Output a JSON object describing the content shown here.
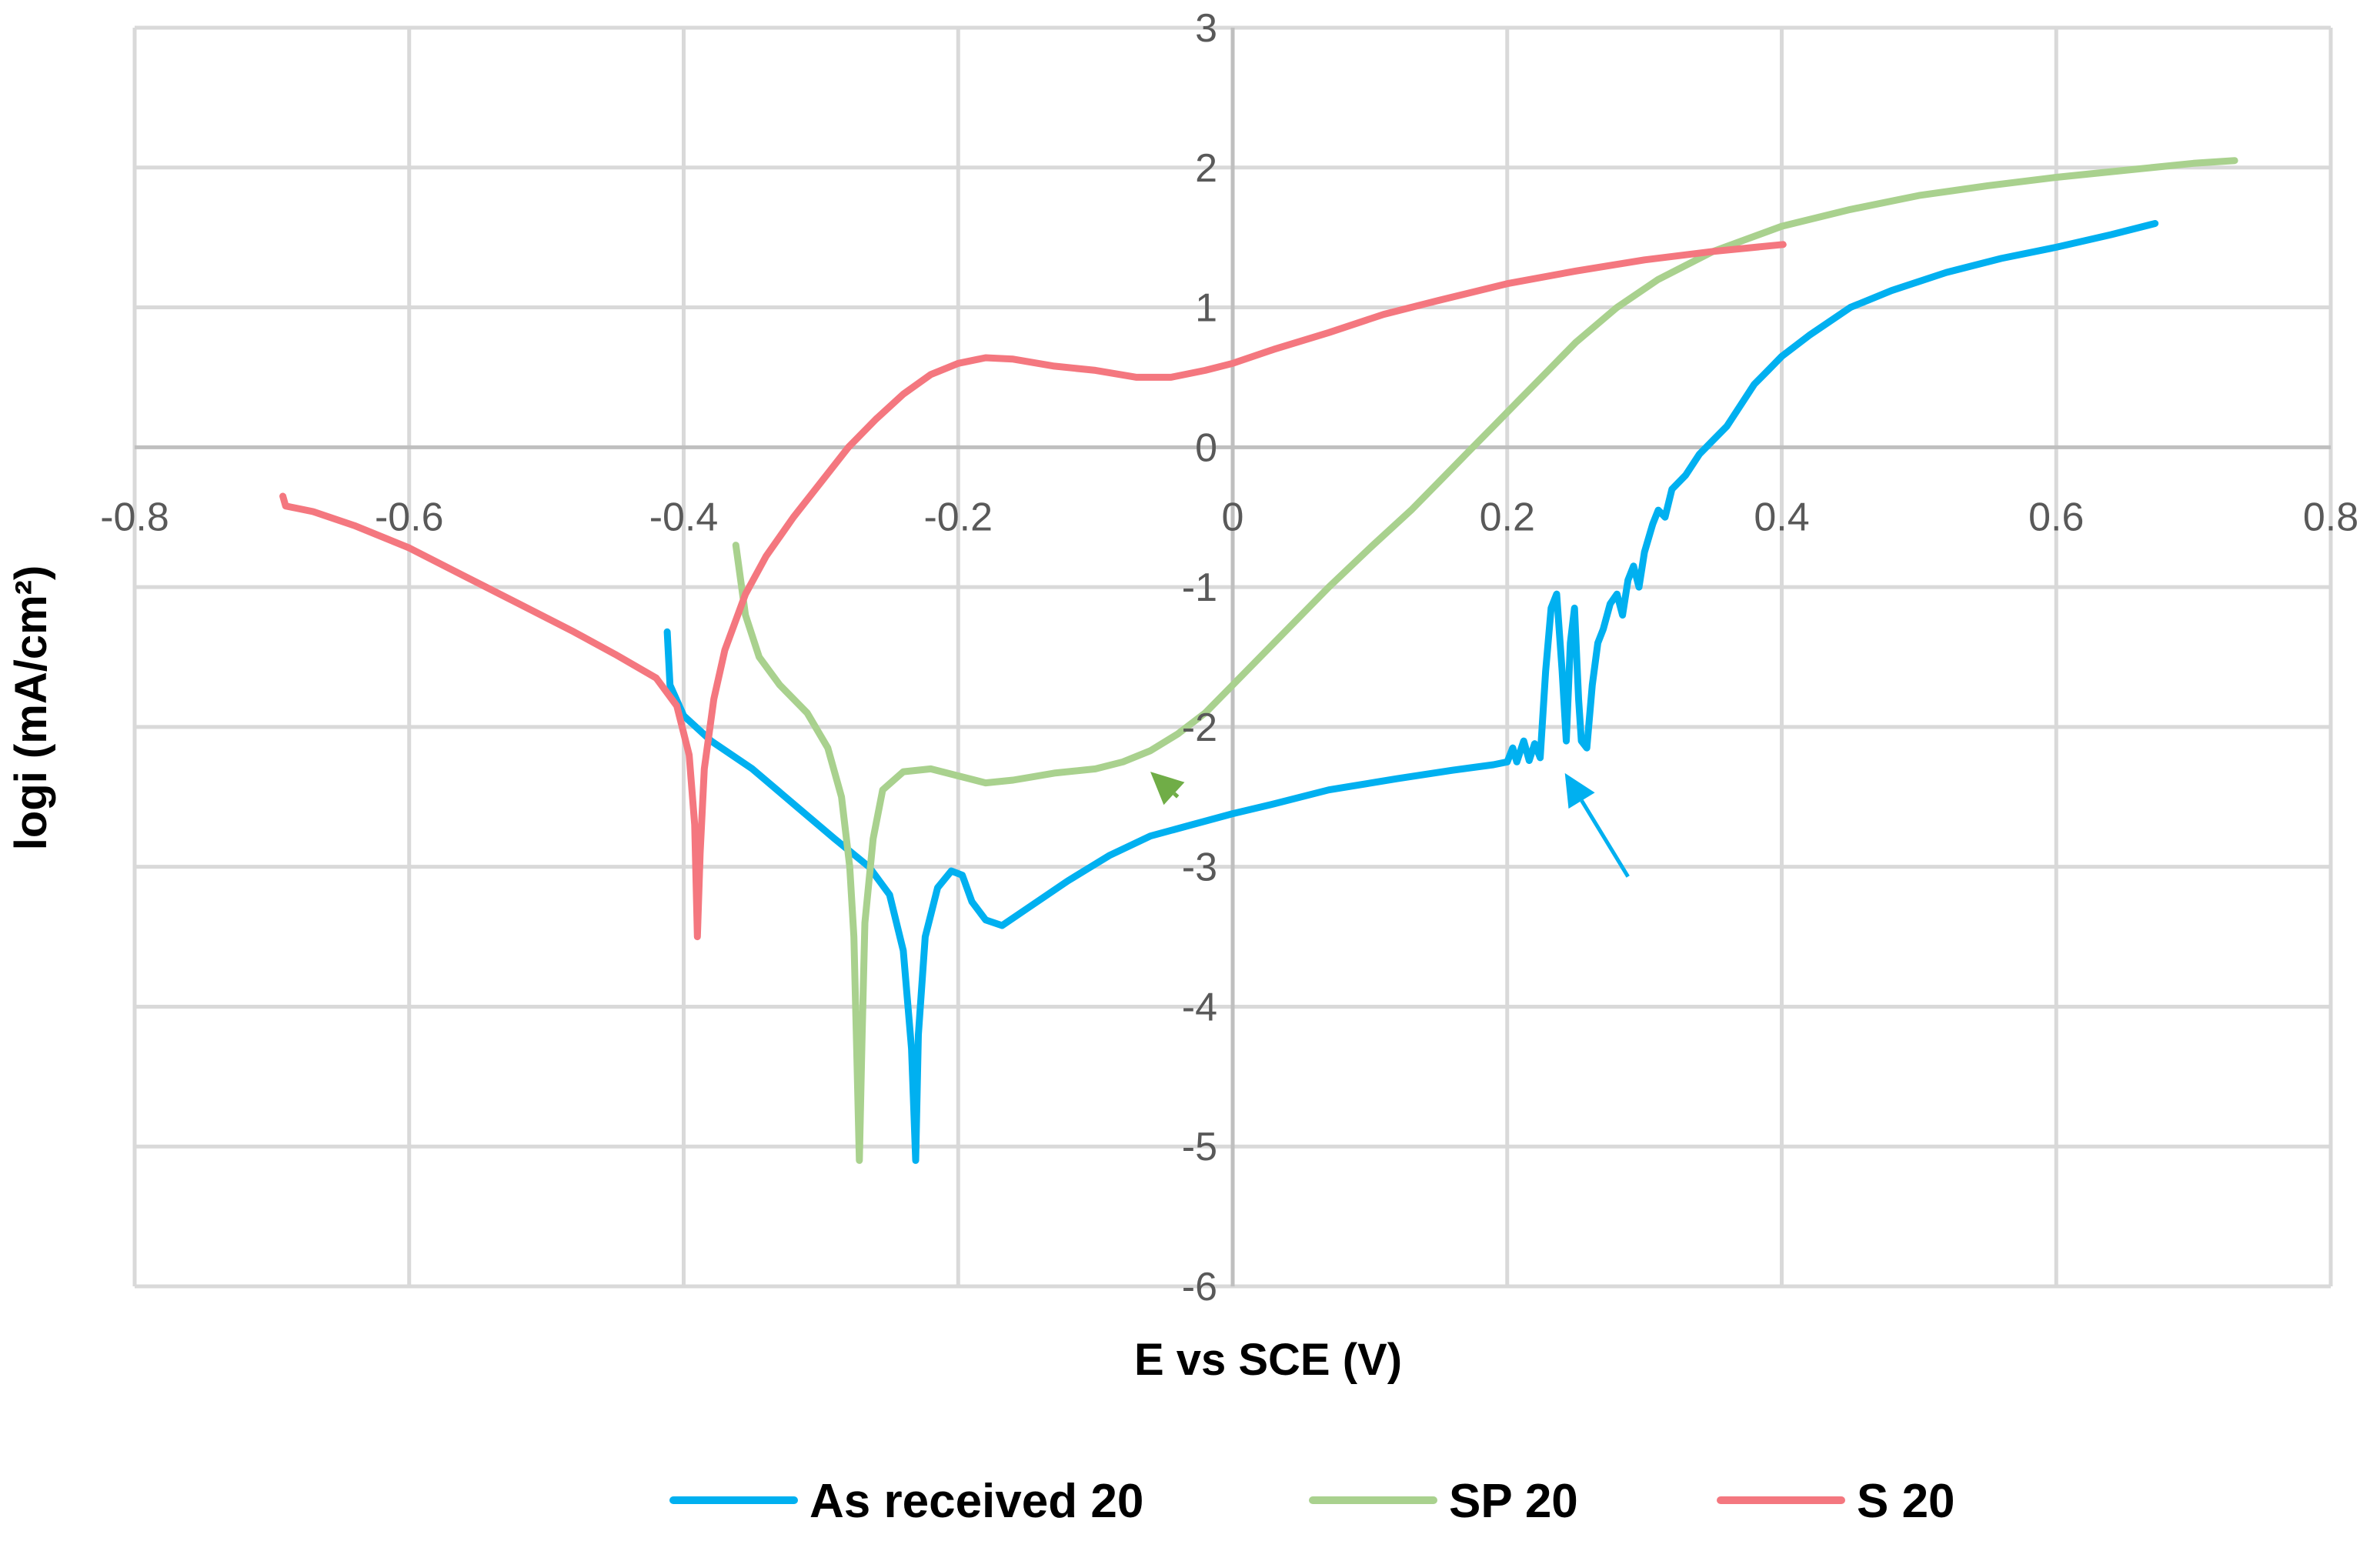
{
  "chart_data": {
    "type": "line",
    "title": "",
    "xlabel": "E vs SCE (V)",
    "ylabel": "logi (mA/cm²)",
    "xlim": [
      -0.8,
      0.8
    ],
    "ylim": [
      -6,
      3
    ],
    "xticks": [
      -0.8,
      -0.6,
      -0.4,
      -0.2,
      0,
      0.2,
      0.4,
      0.6,
      0.8
    ],
    "yticks": [
      -6,
      -5,
      -4,
      -3,
      -2,
      -1,
      0,
      1,
      2,
      3
    ],
    "xtick_labels": [
      "-0.8",
      "-0.6",
      "-0.4",
      "-0.2",
      "0",
      "0.2",
      "0.4",
      "0.6",
      "0.8"
    ],
    "ytick_labels": [
      "-6",
      "-5",
      "-4",
      "-3",
      "-2",
      "-1",
      "0",
      "1",
      "2",
      "3"
    ],
    "grid": true,
    "legend_position": "bottom",
    "series": [
      {
        "name": "As received 20",
        "color": "#00b0f0",
        "points": [
          [
            -0.412,
            -1.32
          ],
          [
            -0.41,
            -1.7
          ],
          [
            -0.4,
            -1.92
          ],
          [
            -0.38,
            -2.1
          ],
          [
            -0.35,
            -2.3
          ],
          [
            -0.32,
            -2.55
          ],
          [
            -0.29,
            -2.8
          ],
          [
            -0.265,
            -3.0
          ],
          [
            -0.25,
            -3.2
          ],
          [
            -0.24,
            -3.6
          ],
          [
            -0.234,
            -4.3
          ],
          [
            -0.231,
            -5.1
          ],
          [
            -0.229,
            -4.2
          ],
          [
            -0.224,
            -3.5
          ],
          [
            -0.215,
            -3.15
          ],
          [
            -0.205,
            -3.03
          ],
          [
            -0.197,
            -3.06
          ],
          [
            -0.19,
            -3.25
          ],
          [
            -0.18,
            -3.38
          ],
          [
            -0.168,
            -3.42
          ],
          [
            -0.15,
            -3.3
          ],
          [
            -0.12,
            -3.1
          ],
          [
            -0.09,
            -2.92
          ],
          [
            -0.06,
            -2.78
          ],
          [
            -0.03,
            -2.7
          ],
          [
            0.0,
            -2.62
          ],
          [
            0.03,
            -2.55
          ],
          [
            0.07,
            -2.45
          ],
          [
            0.12,
            -2.37
          ],
          [
            0.16,
            -2.31
          ],
          [
            0.19,
            -2.27
          ],
          [
            0.2,
            -2.25
          ],
          [
            0.204,
            -2.15
          ],
          [
            0.207,
            -2.25
          ],
          [
            0.212,
            -2.1
          ],
          [
            0.216,
            -2.24
          ],
          [
            0.22,
            -2.12
          ],
          [
            0.224,
            -2.22
          ],
          [
            0.228,
            -1.6
          ],
          [
            0.232,
            -1.15
          ],
          [
            0.236,
            -1.05
          ],
          [
            0.24,
            -1.6
          ],
          [
            0.243,
            -2.1
          ],
          [
            0.246,
            -1.4
          ],
          [
            0.249,
            -1.15
          ],
          [
            0.252,
            -1.8
          ],
          [
            0.254,
            -2.1
          ],
          [
            0.258,
            -2.15
          ],
          [
            0.262,
            -1.7
          ],
          [
            0.266,
            -1.4
          ],
          [
            0.27,
            -1.3
          ],
          [
            0.275,
            -1.12
          ],
          [
            0.28,
            -1.05
          ],
          [
            0.284,
            -1.2
          ],
          [
            0.288,
            -0.95
          ],
          [
            0.292,
            -0.85
          ],
          [
            0.296,
            -1.0
          ],
          [
            0.3,
            -0.75
          ],
          [
            0.306,
            -0.55
          ],
          [
            0.31,
            -0.45
          ],
          [
            0.315,
            -0.5
          ],
          [
            0.32,
            -0.3
          ],
          [
            0.33,
            -0.2
          ],
          [
            0.34,
            -0.05
          ],
          [
            0.35,
            0.05
          ],
          [
            0.36,
            0.15
          ],
          [
            0.37,
            0.3
          ],
          [
            0.38,
            0.45
          ],
          [
            0.39,
            0.55
          ],
          [
            0.4,
            0.65
          ],
          [
            0.42,
            0.8
          ],
          [
            0.45,
            1.0
          ],
          [
            0.48,
            1.12
          ],
          [
            0.52,
            1.25
          ],
          [
            0.56,
            1.35
          ],
          [
            0.6,
            1.43
          ],
          [
            0.64,
            1.52
          ],
          [
            0.672,
            1.6
          ]
        ]
      },
      {
        "name": "SP 20",
        "color": "#a9d18e",
        "points": [
          [
            -0.362,
            -0.7
          ],
          [
            -0.355,
            -1.2
          ],
          [
            -0.345,
            -1.5
          ],
          [
            -0.33,
            -1.7
          ],
          [
            -0.31,
            -1.9
          ],
          [
            -0.295,
            -2.15
          ],
          [
            -0.285,
            -2.5
          ],
          [
            -0.279,
            -3.0
          ],
          [
            -0.276,
            -3.5
          ],
          [
            -0.274,
            -4.3
          ],
          [
            -0.272,
            -5.1
          ],
          [
            -0.27,
            -4.2
          ],
          [
            -0.268,
            -3.4
          ],
          [
            -0.262,
            -2.8
          ],
          [
            -0.255,
            -2.45
          ],
          [
            -0.24,
            -2.32
          ],
          [
            -0.22,
            -2.3
          ],
          [
            -0.2,
            -2.35
          ],
          [
            -0.18,
            -2.4
          ],
          [
            -0.16,
            -2.38
          ],
          [
            -0.13,
            -2.33
          ],
          [
            -0.1,
            -2.3
          ],
          [
            -0.08,
            -2.25
          ],
          [
            -0.06,
            -2.17
          ],
          [
            -0.04,
            -2.05
          ],
          [
            -0.02,
            -1.9
          ],
          [
            0.0,
            -1.7
          ],
          [
            0.02,
            -1.5
          ],
          [
            0.04,
            -1.3
          ],
          [
            0.07,
            -1.0
          ],
          [
            0.1,
            -0.72
          ],
          [
            0.13,
            -0.45
          ],
          [
            0.15,
            -0.25
          ],
          [
            0.17,
            -0.05
          ],
          [
            0.19,
            0.15
          ],
          [
            0.21,
            0.35
          ],
          [
            0.23,
            0.55
          ],
          [
            0.25,
            0.75
          ],
          [
            0.28,
            1.0
          ],
          [
            0.31,
            1.2
          ],
          [
            0.35,
            1.4
          ],
          [
            0.4,
            1.58
          ],
          [
            0.45,
            1.7
          ],
          [
            0.5,
            1.8
          ],
          [
            0.55,
            1.87
          ],
          [
            0.6,
            1.93
          ],
          [
            0.65,
            1.98
          ],
          [
            0.7,
            2.03
          ],
          [
            0.73,
            2.05
          ]
        ]
      },
      {
        "name": "S 20",
        "color": "#f4777f",
        "points": [
          [
            -0.692,
            -0.35
          ],
          [
            -0.69,
            -0.42
          ],
          [
            -0.67,
            -0.46
          ],
          [
            -0.64,
            -0.56
          ],
          [
            -0.6,
            -0.72
          ],
          [
            -0.56,
            -0.92
          ],
          [
            -0.52,
            -1.12
          ],
          [
            -0.48,
            -1.32
          ],
          [
            -0.45,
            -1.48
          ],
          [
            -0.42,
            -1.65
          ],
          [
            -0.405,
            -1.85
          ],
          [
            -0.396,
            -2.2
          ],
          [
            -0.392,
            -2.7
          ],
          [
            -0.39,
            -3.5
          ],
          [
            -0.388,
            -2.9
          ],
          [
            -0.385,
            -2.3
          ],
          [
            -0.378,
            -1.8
          ],
          [
            -0.37,
            -1.45
          ],
          [
            -0.355,
            -1.05
          ],
          [
            -0.34,
            -0.78
          ],
          [
            -0.32,
            -0.5
          ],
          [
            -0.3,
            -0.25
          ],
          [
            -0.28,
            0.0
          ],
          [
            -0.26,
            0.2
          ],
          [
            -0.24,
            0.38
          ],
          [
            -0.22,
            0.52
          ],
          [
            -0.2,
            0.6
          ],
          [
            -0.18,
            0.64
          ],
          [
            -0.16,
            0.63
          ],
          [
            -0.13,
            0.58
          ],
          [
            -0.1,
            0.55
          ],
          [
            -0.07,
            0.5
          ],
          [
            -0.045,
            0.5
          ],
          [
            -0.02,
            0.55
          ],
          [
            0.0,
            0.6
          ],
          [
            0.03,
            0.7
          ],
          [
            0.07,
            0.82
          ],
          [
            0.11,
            0.95
          ],
          [
            0.15,
            1.05
          ],
          [
            0.2,
            1.17
          ],
          [
            0.25,
            1.26
          ],
          [
            0.3,
            1.34
          ],
          [
            0.35,
            1.4
          ],
          [
            0.401,
            1.45
          ]
        ]
      }
    ],
    "annotations": [
      {
        "type": "arrow",
        "color": "#70ad47",
        "from": [
          -0.04,
          -2.5
        ],
        "to": [
          -0.06,
          -2.32
        ]
      },
      {
        "type": "arrow",
        "color": "#00b0f0",
        "from": [
          0.288,
          -3.07
        ],
        "to": [
          0.242,
          -2.33
        ]
      }
    ]
  }
}
